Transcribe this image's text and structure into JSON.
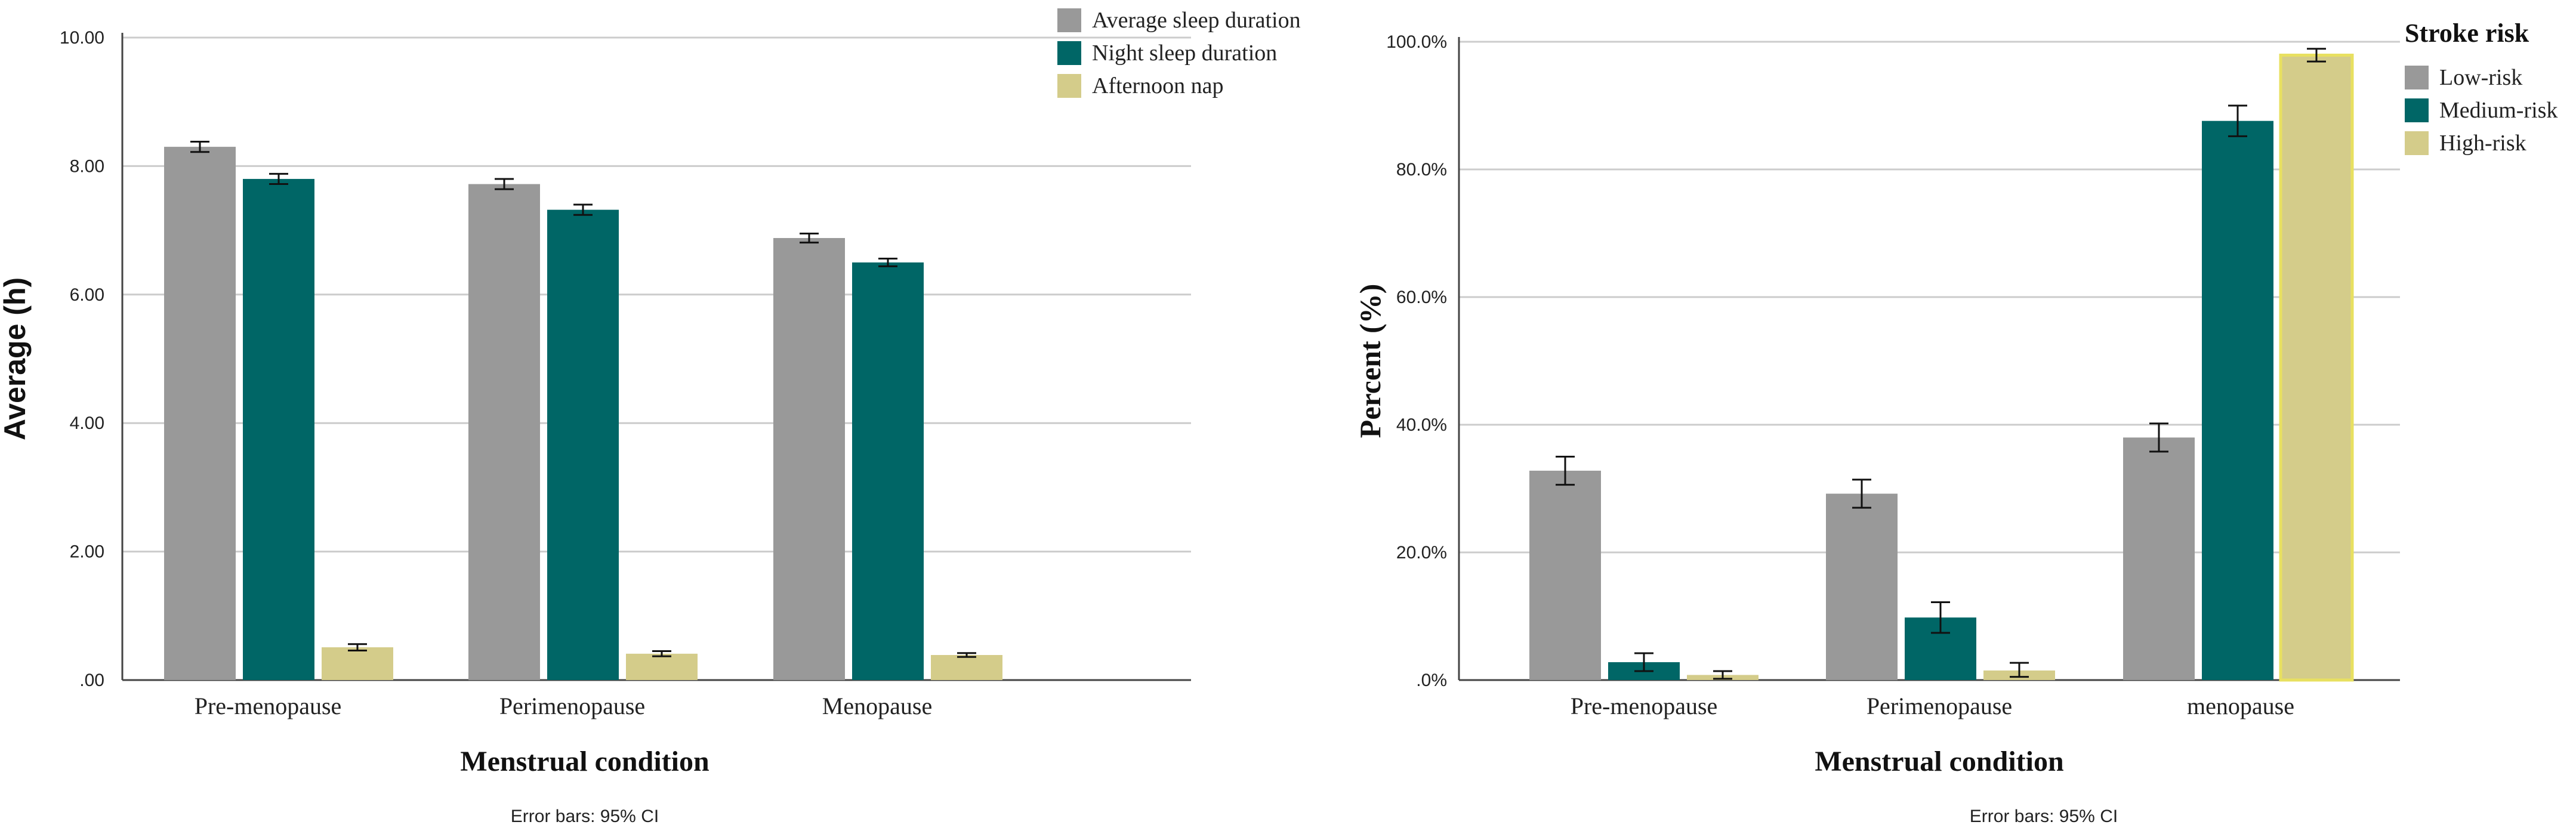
{
  "colors": {
    "gray": "#999999",
    "teal": "#006666",
    "khaki": "#d4cc8a",
    "grid": "#cccccc",
    "axis": "#444444",
    "highlight_outline": "#e8e060"
  },
  "chart_data": [
    {
      "type": "bar",
      "categories": [
        "Pre-menopause",
        "Perimenopause",
        "Menopause"
      ],
      "xlabel": "Menstrual condition",
      "ylabel": "Average (h)",
      "ylim": [
        0,
        10
      ],
      "yticks": [
        ".00",
        "2.00",
        "4.00",
        "6.00",
        "8.00",
        "10.00"
      ],
      "legend_position": "top-right",
      "series": [
        {
          "name": "Average sleep duration",
          "color": "#999999",
          "values": [
            8.3,
            7.72,
            6.88
          ],
          "ci": [
            [
              8.22,
              8.38
            ],
            [
              7.64,
              7.8
            ],
            [
              6.81,
              6.95
            ]
          ]
        },
        {
          "name": "Night sleep duration",
          "color": "#006666",
          "values": [
            7.8,
            7.32,
            6.5
          ],
          "ci": [
            [
              7.72,
              7.88
            ],
            [
              7.24,
              7.4
            ],
            [
              6.44,
              6.56
            ]
          ]
        },
        {
          "name": "Afternoon nap",
          "color": "#d4cc8a",
          "values": [
            0.51,
            0.41,
            0.39
          ],
          "ci": [
            [
              0.46,
              0.56
            ],
            [
              0.37,
              0.45
            ],
            [
              0.36,
              0.42
            ]
          ]
        }
      ],
      "note": "Error bars: 95% CI"
    },
    {
      "type": "bar",
      "categories": [
        "Pre-menopause",
        "Perimenopause",
        "menopause"
      ],
      "xlabel": "Menstrual condition",
      "ylabel": "Percent (%)",
      "ylim": [
        0,
        100
      ],
      "yticks": [
        ".0%",
        "20.0%",
        "40.0%",
        "60.0%",
        "80.0%",
        "100.0%"
      ],
      "legend_title": "Stroke risk",
      "legend_position": "top-right",
      "series": [
        {
          "name": "Low-risk",
          "color": "#999999",
          "values": [
            32.8,
            29.2,
            38.0
          ],
          "ci": [
            [
              30.6,
              35.0
            ],
            [
              27.0,
              31.4
            ],
            [
              35.8,
              40.2
            ]
          ]
        },
        {
          "name": "Medium-risk",
          "color": "#006666",
          "values": [
            2.8,
            9.8,
            87.6
          ],
          "ci": [
            [
              1.4,
              4.2
            ],
            [
              7.4,
              12.2
            ],
            [
              85.2,
              90.0
            ]
          ]
        },
        {
          "name": "High-risk",
          "color": "#d4cc8a",
          "values": [
            0.8,
            1.5,
            97.9
          ],
          "ci": [
            [
              0.2,
              1.4
            ],
            [
              0.5,
              2.7
            ],
            [
              96.9,
              98.9
            ]
          ]
        }
      ],
      "note": "Error bars: 95% CI"
    }
  ]
}
